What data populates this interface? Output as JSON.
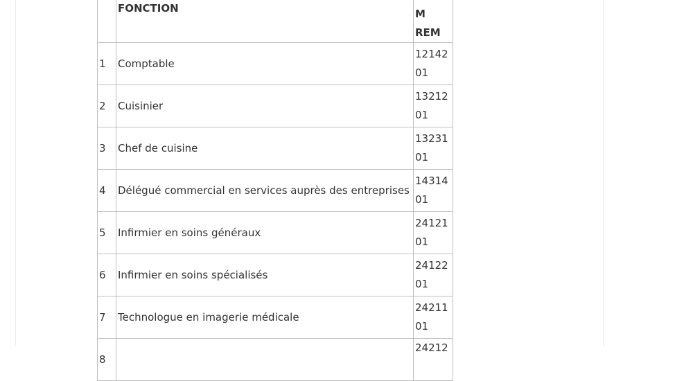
{
  "table": {
    "header": {
      "fonction": "FONCTION",
      "code": "M REM"
    },
    "rows": [
      {
        "num": "1",
        "fonction": "Comptable",
        "code": [
          "12142",
          "01"
        ]
      },
      {
        "num": "2",
        "fonction": "Cuisinier",
        "code": [
          "13212",
          "01"
        ]
      },
      {
        "num": "3",
        "fonction": "Chef de cuisine",
        "code": [
          "13231",
          "01"
        ]
      },
      {
        "num": "4",
        "fonction": "Délégué commercial en services auprès des entreprises",
        "code": [
          "14314",
          "01"
        ]
      },
      {
        "num": "5",
        "fonction": "Infirmier en soins généraux",
        "code": [
          "24121",
          "01"
        ]
      },
      {
        "num": "6",
        "fonction": "Infirmier en soins spécialisés",
        "code": [
          "24122",
          "01"
        ]
      },
      {
        "num": "7",
        "fonction": "Technologue en imagerie médicale",
        "code": [
          "24211",
          "01"
        ]
      },
      {
        "num": "8",
        "code": [
          "24212"
        ]
      }
    ]
  }
}
